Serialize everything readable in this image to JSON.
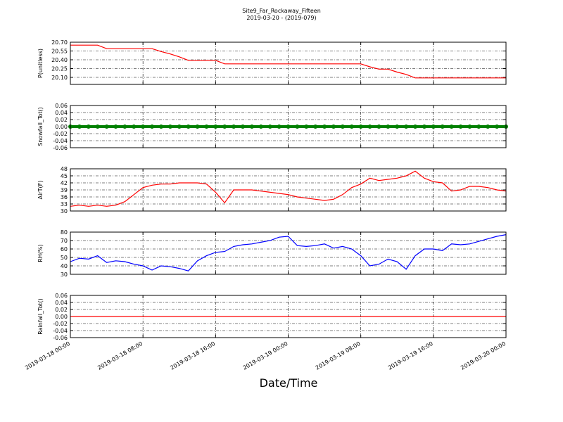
{
  "chart_data": {
    "type": "line",
    "title": "Site9_Far_Rockaway_Fifteen",
    "subtitle": "2019-03-20 - (2019-079)",
    "x_label": "Date/Time",
    "grid": true,
    "xlim": [
      "2019-03-18 00:00",
      "2019-03-20 00:00"
    ],
    "xticks": [
      "2019-03-18 00:00",
      "2019-03-18 08:00",
      "2019-03-18 16:00",
      "2019-03-19 00:00",
      "2019-03-19 08:00",
      "2019-03-19 16:00",
      "2019-03-20 00:00"
    ],
    "x": [
      "2019-03-18 00:00",
      "2019-03-18 01:00",
      "2019-03-18 02:00",
      "2019-03-18 03:00",
      "2019-03-18 04:00",
      "2019-03-18 05:00",
      "2019-03-18 06:00",
      "2019-03-18 07:00",
      "2019-03-18 08:00",
      "2019-03-18 09:00",
      "2019-03-18 10:00",
      "2019-03-18 11:00",
      "2019-03-18 12:00",
      "2019-03-18 13:00",
      "2019-03-18 14:00",
      "2019-03-18 15:00",
      "2019-03-18 16:00",
      "2019-03-18 17:00",
      "2019-03-18 18:00",
      "2019-03-18 19:00",
      "2019-03-18 20:00",
      "2019-03-18 21:00",
      "2019-03-18 22:00",
      "2019-03-18 23:00",
      "2019-03-19 00:00",
      "2019-03-19 01:00",
      "2019-03-19 02:00",
      "2019-03-19 03:00",
      "2019-03-19 04:00",
      "2019-03-19 05:00",
      "2019-03-19 06:00",
      "2019-03-19 07:00",
      "2019-03-19 08:00",
      "2019-03-19 09:00",
      "2019-03-19 10:00",
      "2019-03-19 11:00",
      "2019-03-19 12:00",
      "2019-03-19 13:00",
      "2019-03-19 14:00",
      "2019-03-19 15:00",
      "2019-03-19 16:00",
      "2019-03-19 17:00",
      "2019-03-19 18:00",
      "2019-03-19 19:00",
      "2019-03-19 20:00",
      "2019-03-19 21:00",
      "2019-03-19 22:00",
      "2019-03-19 23:00",
      "2019-03-20 00:00"
    ],
    "panels": [
      {
        "ylabel": "P(unitless)",
        "ylim": [
          19.98,
          20.7
        ],
        "yticks": [
          {
            "value": 20.1,
            "label": "20.10"
          },
          20.25,
          {
            "value": 20.4,
            "label": "20.40"
          },
          20.55,
          {
            "value": 20.7,
            "label": "20.70"
          }
        ],
        "series": [
          {
            "color": "#ff0000",
            "values": [
              20.65,
              20.65,
              20.65,
              20.65,
              20.59,
              20.59,
              20.59,
              20.59,
              20.59,
              20.59,
              20.54,
              20.5,
              20.45,
              20.39,
              20.39,
              20.39,
              20.39,
              20.33,
              20.33,
              20.33,
              20.33,
              20.33,
              20.33,
              20.33,
              20.33,
              20.33,
              20.33,
              20.33,
              20.33,
              20.33,
              20.33,
              20.33,
              20.33,
              20.28,
              20.24,
              20.24,
              20.19,
              20.15,
              20.09,
              20.09,
              20.09,
              20.09,
              20.09,
              20.09,
              20.09,
              20.09,
              20.09,
              20.09,
              20.09
            ]
          }
        ]
      },
      {
        "ylabel": "Snowfall_Tot()",
        "ylim": [
          -0.06,
          0.06
        ],
        "marker": "o",
        "yticks": [
          -0.06,
          -0.04,
          -0.02,
          {
            "value": 0,
            "label": "0.00"
          },
          0.02,
          0.04,
          0.06
        ],
        "series": [
          {
            "color": "#008000",
            "values": [
              0,
              0,
              0,
              0,
              0,
              0,
              0,
              0,
              0,
              0,
              0,
              0,
              0,
              0,
              0,
              0,
              0,
              0,
              0,
              0,
              0,
              0,
              0,
              0,
              0,
              0,
              0,
              0,
              0,
              0,
              0,
              0,
              0,
              0,
              0,
              0,
              0,
              0,
              0,
              0,
              0,
              0,
              0,
              0,
              0,
              0,
              0,
              0,
              0
            ]
          }
        ]
      },
      {
        "ylabel": "AirT(F)",
        "ylim": [
          30,
          48
        ],
        "yticks": [
          30,
          33,
          36,
          39,
          42,
          45,
          48
        ],
        "series": [
          {
            "color": "#ff0000",
            "values": [
              32,
              32.5,
              32,
              32.5,
              32,
              32.5,
              34,
              37,
              40,
              41,
              41.5,
              41.5,
              42,
              42,
              42,
              41.5,
              38,
              33.5,
              39,
              39,
              39,
              38.5,
              38,
              37.5,
              37,
              36,
              35.5,
              35,
              34.5,
              35,
              37,
              40,
              41.5,
              44,
              43,
              43.5,
              44,
              45,
              47,
              44,
              42.5,
              42,
              38.5,
              39,
              40.5,
              40.5,
              40,
              39,
              38.5
            ]
          }
        ]
      },
      {
        "ylabel": "RH(%)",
        "ylim": [
          30,
          80
        ],
        "yticks": [
          30,
          40,
          50,
          60,
          70,
          80
        ],
        "series": [
          {
            "color": "#0000ff",
            "values": [
              45,
              49,
              48,
              52,
              44,
              46,
              45,
              42,
              40,
              35,
              40,
              39,
              37,
              34,
              46,
              52,
              56,
              57,
              63,
              65,
              66,
              68,
              70,
              74,
              75,
              64,
              63,
              64,
              66,
              61,
              63,
              60,
              52,
              40,
              42,
              48,
              45,
              36,
              52,
              60,
              60,
              58,
              66,
              65,
              66,
              69,
              72,
              75,
              77
            ]
          }
        ]
      },
      {
        "ylabel": "Rainfall_Tot()",
        "ylim": [
          -0.06,
          0.06
        ],
        "yticks": [
          -0.06,
          -0.04,
          -0.02,
          {
            "value": 0,
            "label": "0.00"
          },
          0.02,
          0.04,
          0.06
        ],
        "series": [
          {
            "color": "#ff0000",
            "values": [
              0,
              0,
              0,
              0,
              0,
              0,
              0,
              0,
              0,
              0,
              0,
              0,
              0,
              0,
              0,
              0,
              0,
              0,
              0,
              0,
              0,
              0,
              0,
              0,
              0,
              0,
              0,
              0,
              0,
              0,
              0,
              0,
              0,
              0,
              0,
              0,
              0,
              0,
              0,
              0,
              0,
              0,
              0,
              0,
              0,
              0,
              0,
              0,
              0
            ]
          }
        ]
      }
    ]
  }
}
